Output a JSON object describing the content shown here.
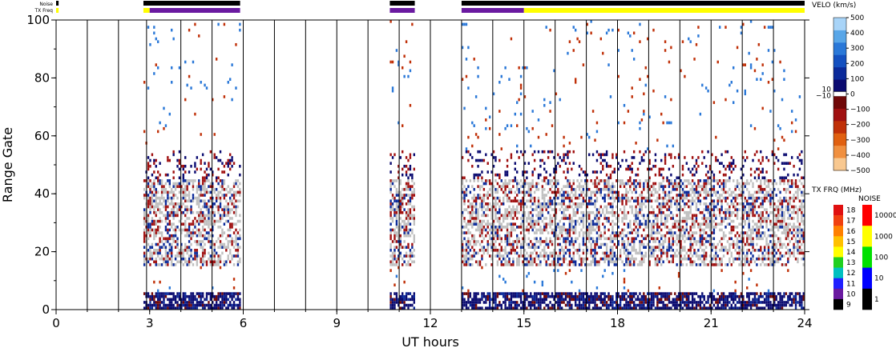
{
  "chart_data": {
    "type": "heatmap",
    "xlabel": "UT hours",
    "ylabel": "Range Gate",
    "xlim": [
      0,
      24
    ],
    "ylim": [
      0,
      100
    ],
    "x_ticks": [
      "0",
      "3",
      "6",
      "9",
      "12",
      "15",
      "18",
      "21",
      "24"
    ],
    "y_ticks": [
      "0",
      "20",
      "40",
      "60",
      "80",
      "100"
    ],
    "scan_boundaries": [
      1,
      2,
      2.9,
      4,
      5,
      6,
      7,
      8,
      9,
      10,
      11,
      12,
      13,
      14,
      15,
      16,
      17,
      18,
      19,
      20,
      21,
      22,
      23
    ],
    "data_segments": [
      {
        "start": 2.8,
        "end": 5.9
      },
      {
        "start": 10.7,
        "end": 11.5
      },
      {
        "start": 13.0,
        "end": 24.0
      }
    ],
    "strips": {
      "noise_label": "Noise",
      "txfreq_label": "TX Freq",
      "noise_segments": [
        {
          "start": 0.0,
          "end": 0.08,
          "color": "#000000"
        },
        {
          "start": 2.8,
          "end": 5.9,
          "color": "#000000"
        },
        {
          "start": 10.7,
          "end": 11.5,
          "color": "#000000"
        },
        {
          "start": 13.0,
          "end": 24.0,
          "color": "#000000"
        }
      ],
      "txfreq_segments": [
        {
          "start": 0.0,
          "end": 0.08,
          "color": "#ffff00"
        },
        {
          "start": 2.8,
          "end": 3.0,
          "color": "#ffff00"
        },
        {
          "start": 3.0,
          "end": 5.9,
          "color": "#6a1aa0"
        },
        {
          "start": 10.7,
          "end": 11.5,
          "color": "#6a1aa0"
        },
        {
          "start": 13.0,
          "end": 15.0,
          "color": "#6a1aa0"
        },
        {
          "start": 15.0,
          "end": 24.0,
          "color": "#ffff00"
        }
      ]
    },
    "velocity_colorbar": {
      "title": "VELO (km/s)",
      "ticks": [
        "500",
        "400",
        "300",
        "200",
        "100",
        "0",
        "−100",
        "−200",
        "−300",
        "−400",
        "−500"
      ],
      "center_labels": [
        "10",
        "−10"
      ],
      "positive_colors": [
        "#0a0a70",
        "#0b2a9a",
        "#1450c0",
        "#2a78d8",
        "#58a6e8",
        "#a8d4f8"
      ],
      "negative_colors": [
        "#700808",
        "#a01010",
        "#c03008",
        "#e06010",
        "#f09040",
        "#f8c890"
      ]
    },
    "txfreq_colorbar": {
      "title": "TX FRQ (MHz)",
      "ticks": [
        "18",
        "17",
        "16",
        "15",
        "14",
        "13",
        "12",
        "11",
        "10",
        "9"
      ],
      "colors": [
        "#e01010",
        "#f04010",
        "#ff8000",
        "#ffc000",
        "#ffff00",
        "#20d020",
        "#00c0c0",
        "#2020ff",
        "#6a1aa0",
        "#000000"
      ]
    },
    "noise_colorbar": {
      "title": "NOISE",
      "ticks": [
        "10000",
        "1000",
        "100",
        "10",
        "1"
      ],
      "colors": [
        "#ff0000",
        "#ffff00",
        "#00e000",
        "#0000ff",
        "#000000"
      ]
    },
    "ground_scatter_color": "#c0c0c0"
  }
}
